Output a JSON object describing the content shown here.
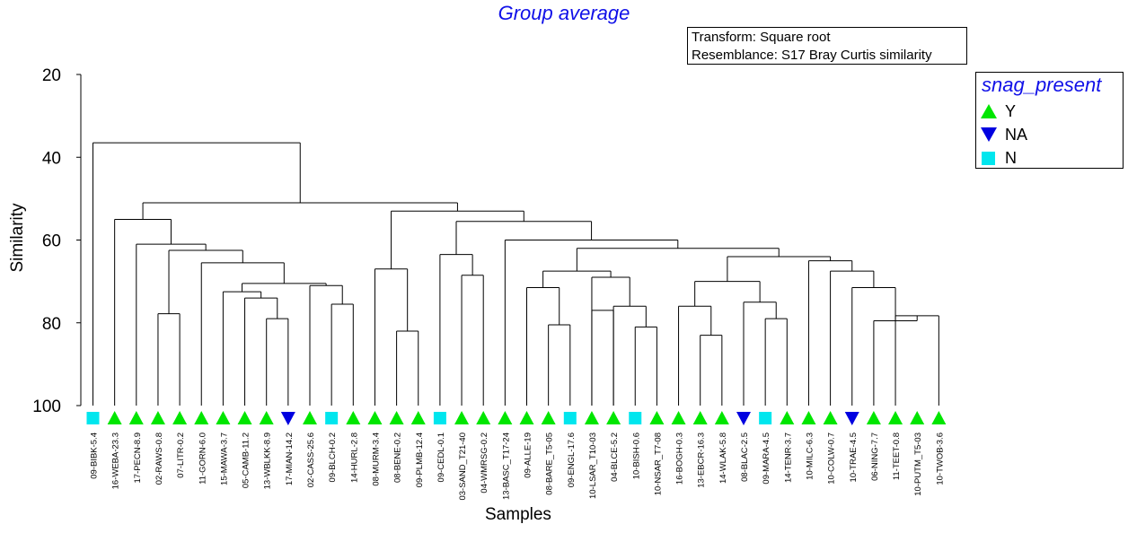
{
  "title": "Group average",
  "info": {
    "transform": "Transform: Square root",
    "resemblance": "Resemblance: S17 Bray Curtis similarity"
  },
  "legend": {
    "title": "snag_present",
    "items": [
      {
        "label": "Y",
        "symbol": "triangle-up",
        "color": "#00e600"
      },
      {
        "label": "NA",
        "symbol": "triangle-down",
        "color": "#0000e0"
      },
      {
        "label": "N",
        "symbol": "square",
        "color": "#00e6ee"
      }
    ]
  },
  "axes": {
    "ylabel": "Similarity",
    "xlabel": "Samples",
    "yticks": [
      20,
      40,
      60,
      80,
      100
    ],
    "ylim": [
      20,
      100
    ]
  },
  "chart_data": {
    "type": "dendrogram",
    "method": "Group average",
    "samples": [
      {
        "label": "09-BIBK-5.4",
        "group": "N"
      },
      {
        "label": "16-WEBA-23.3",
        "group": "Y"
      },
      {
        "label": "17-PECN-8.9",
        "group": "Y"
      },
      {
        "label": "02-RAWS-0.8",
        "group": "Y"
      },
      {
        "label": "07-LITR-0.2",
        "group": "Y"
      },
      {
        "label": "11-GORN-6.0",
        "group": "Y"
      },
      {
        "label": "15-MAWA-3.7",
        "group": "Y"
      },
      {
        "label": "05-CAMB-11.2",
        "group": "Y"
      },
      {
        "label": "13-WBLKK-8.9",
        "group": "Y"
      },
      {
        "label": "17-MIAN-14.2",
        "group": "NA"
      },
      {
        "label": "02-CASS-25.6",
        "group": "Y"
      },
      {
        "label": "09-BLCH-0.2",
        "group": "N"
      },
      {
        "label": "14-HURL-2.8",
        "group": "Y"
      },
      {
        "label": "08-MURM-3.4",
        "group": "Y"
      },
      {
        "label": "08-BENE-0.2",
        "group": "Y"
      },
      {
        "label": "09-PLMB-12.4",
        "group": "Y"
      },
      {
        "label": "09-CEDL-0.1",
        "group": "N"
      },
      {
        "label": "03-SAND_T21-40",
        "group": "Y"
      },
      {
        "label": "04-WMRSG-0.2",
        "group": "Y"
      },
      {
        "label": "13-BASC_T17-24",
        "group": "Y"
      },
      {
        "label": "09-ALLE-19",
        "group": "Y"
      },
      {
        "label": "08-BARE_T5-05",
        "group": "Y"
      },
      {
        "label": "09-ENGL-17.6",
        "group": "N"
      },
      {
        "label": "10-LSAR_T10-03",
        "group": "Y"
      },
      {
        "label": "04-BLCE-5.2",
        "group": "Y"
      },
      {
        "label": "10-BISH-0.6",
        "group": "N"
      },
      {
        "label": "10-NSAR_T7-08",
        "group": "Y"
      },
      {
        "label": "16-BOGH-0.3",
        "group": "Y"
      },
      {
        "label": "13-EBCR-16.3",
        "group": "Y"
      },
      {
        "label": "14-WLAK-5.8",
        "group": "Y"
      },
      {
        "label": "08-BLAC-2.5",
        "group": "NA"
      },
      {
        "label": "09-MARA-4.5",
        "group": "N"
      },
      {
        "label": "14-TENR-3.7",
        "group": "Y"
      },
      {
        "label": "10-MILC-6.3",
        "group": "Y"
      },
      {
        "label": "10-COLW-0.7",
        "group": "Y"
      },
      {
        "label": "10-TRAE-4.5",
        "group": "NA"
      },
      {
        "label": "06-NING-7.7",
        "group": "Y"
      },
      {
        "label": "11-TEET-0.8",
        "group": "Y"
      },
      {
        "label": "10-PUTM_T5-03",
        "group": "Y"
      },
      {
        "label": "10-TWOB-3.6",
        "group": "Y"
      }
    ],
    "merges": [
      {
        "id": "m1",
        "a": 37,
        "b": 39,
        "sim": 78.3
      },
      {
        "id": "m2",
        "a": 4,
        "b": 3,
        "sim": 77.8
      },
      {
        "id": "m3",
        "a": 36,
        "b": "m1",
        "sim": 79.5
      },
      {
        "id": "m4",
        "a": 8,
        "b": 9,
        "sim": 79.0
      },
      {
        "id": "m5",
        "a": 22,
        "b": 21,
        "sim": 80.5
      },
      {
        "id": "m6",
        "a": 25,
        "b": 26,
        "sim": 81.0
      },
      {
        "id": "m7",
        "a": 14,
        "b": 15,
        "sim": 82.0
      },
      {
        "id": "m8",
        "a": 28,
        "b": 29,
        "sim": 83.0
      },
      {
        "id": "m9",
        "a": 31,
        "b": 32,
        "sim": 79.0
      },
      {
        "id": "m10",
        "a": 11,
        "b": 12,
        "sim": 75.5
      },
      {
        "id": "m11",
        "a": 23,
        "b": 24,
        "sim": 77.0
      },
      {
        "id": "m12",
        "a": 7,
        "b": "m4",
        "sim": 74.0
      },
      {
        "id": "m13",
        "a": 30,
        "b": "m9",
        "sim": 75.0
      },
      {
        "id": "m14",
        "a": 27,
        "b": "m8",
        "sim": 76.0
      },
      {
        "id": "m15",
        "a": 35,
        "b": "m3",
        "sim": 71.5
      },
      {
        "id": "m16",
        "a": 24,
        "b": "m6",
        "sim": 76.0
      },
      {
        "id": "m17",
        "a": 10,
        "b": "m10",
        "sim": 71.0
      },
      {
        "id": "m18",
        "a": 6,
        "b": "m12",
        "sim": 72.5
      },
      {
        "id": "m19",
        "a": 20,
        "b": "m5",
        "sim": 71.5
      },
      {
        "id": "m20",
        "a": "m14",
        "b": "m13",
        "sim": 70.0
      },
      {
        "id": "m21",
        "a": 17,
        "b": 18,
        "sim": 68.5
      },
      {
        "id": "m22",
        "a": "m18",
        "b": "m17",
        "sim": 70.5
      },
      {
        "id": "m23",
        "a": 23,
        "b": "m16",
        "sim": 69.0
      },
      {
        "id": "m24",
        "a": 13,
        "b": "m7",
        "sim": 67.0
      },
      {
        "id": "m25",
        "a": 34,
        "b": "m15",
        "sim": 67.5
      },
      {
        "id": "m26",
        "a": "m19",
        "b": "m23",
        "sim": 67.5
      },
      {
        "id": "m27",
        "a": 5,
        "b": "m22",
        "sim": 65.5
      },
      {
        "id": "m28",
        "a": 16,
        "b": "m21",
        "sim": 63.5
      },
      {
        "id": "m29",
        "a": 33,
        "b": "m25",
        "sim": 65.0
      },
      {
        "id": "m30",
        "a": "m20",
        "b": "m29",
        "sim": 64.0
      },
      {
        "id": "m31",
        "a": "m2",
        "b": "m27",
        "sim": 62.5
      },
      {
        "id": "m32",
        "a": "m26",
        "b": "m30",
        "sim": 62.0
      },
      {
        "id": "m33",
        "a": 2,
        "b": "m31",
        "sim": 61.0
      },
      {
        "id": "m34",
        "a": 19,
        "b": "m32",
        "sim": 60.0
      },
      {
        "id": "m35",
        "a": "m28",
        "b": "m34",
        "sim": 55.5
      },
      {
        "id": "m36",
        "a": "m24",
        "b": "m35",
        "sim": 53.0
      },
      {
        "id": "m37",
        "a": 1,
        "b": "m33",
        "sim": 55.0
      },
      {
        "id": "m38",
        "a": "m37",
        "b": "m36",
        "sim": 51.0
      },
      {
        "id": "m39",
        "a": 0,
        "b": "m38",
        "sim": 36.5
      }
    ]
  }
}
